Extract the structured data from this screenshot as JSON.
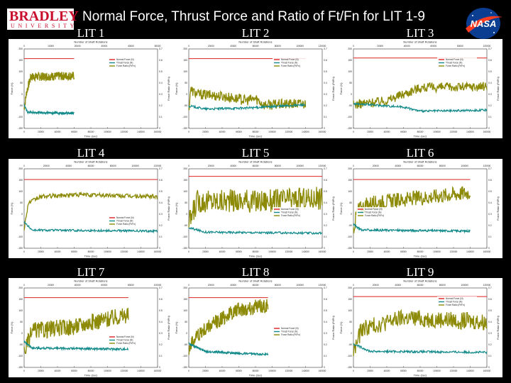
{
  "header": {
    "logo": {
      "main": "BRADLEY",
      "sub": "UNIVERSITY"
    },
    "title": "Normal Force, Thrust Force and Ratio of Ft/Fn for LIT 1-9",
    "nasa": "NASA"
  },
  "colors": {
    "background": "#000000",
    "normal": "#dd2222",
    "thrust": "#138a8a",
    "ratio": "#8c8a06"
  },
  "chart_data": [
    {
      "label": "LIT 1",
      "type": "line",
      "title": "Number of Shaft Rotations",
      "xlabel": "Time (sec)",
      "ylabel": "Force (N)",
      "y2label": "Force Ratio (Ft/Fn)",
      "top_ticks": [
        "0",
        "10000",
        "20000",
        "30000",
        "40000",
        "50000"
      ],
      "x_ticks": [
        "0",
        "20000",
        "40000",
        "60000",
        "80000",
        "100000",
        "120000",
        "140000",
        "160000"
      ],
      "y_ticks": [
        "200",
        "150",
        "100",
        "50",
        "0",
        "-50",
        "-100",
        "-150"
      ],
      "y2_ticks": [
        "0.7",
        "0.6",
        "0.5",
        "0.4",
        "0.3",
        "0.2",
        "0.1",
        "0"
      ],
      "legend": [
        "Normal Force (N)",
        "Thrust Force (N)",
        "Force Ratio (Ft/Fn)"
      ],
      "legend_pos": "top-right",
      "xlim": [
        0,
        160000
      ],
      "ylim": [
        -150,
        220
      ],
      "series_end": 60000,
      "normal": 175,
      "thrust": [
        [
          0,
          -40
        ],
        [
          4000,
          -75
        ],
        [
          60000,
          -80
        ]
      ],
      "ratio": [
        [
          0,
          -60
        ],
        [
          3000,
          20
        ],
        [
          8000,
          90
        ],
        [
          60000,
          95
        ]
      ],
      "ratio_noise": 20
    },
    {
      "label": "LIT 2",
      "type": "line",
      "title": "Number of Shaft Rotations",
      "xlabel": "Time (sec)",
      "ylabel": "Force (N)",
      "y2label": "Force Ratio (Ft/Fn)",
      "top_ticks": [
        "0",
        "20000",
        "40000",
        "60000",
        "80000",
        "100000",
        "120000"
      ],
      "x_ticks": [
        "0",
        "20000",
        "40000",
        "60000",
        "80000",
        "100000",
        "120000",
        "140000",
        "160000"
      ],
      "y_ticks": [
        "200",
        "150",
        "100",
        "50",
        "0",
        "-50",
        "-100",
        "-150"
      ],
      "y2_ticks": [
        "0.7",
        "0.6",
        "0.5",
        "0.4",
        "0.3",
        "0.2",
        "0.1",
        "0"
      ],
      "legend": [
        "Normal Force (N)",
        "Thrust Force (N)",
        "Force Ratio (Ft/Fn)"
      ],
      "legend_pos": "top-right",
      "xlim": [
        0,
        160000
      ],
      "ylim": [
        -150,
        220
      ],
      "series_end": 140000,
      "normal": 175,
      "thrust": [
        [
          0,
          -45
        ],
        [
          20000,
          -60
        ],
        [
          70000,
          -55
        ],
        [
          140000,
          -40
        ]
      ],
      "ratio": [
        [
          0,
          -70
        ],
        [
          2000,
          30
        ],
        [
          10000,
          10
        ],
        [
          40000,
          0
        ],
        [
          70000,
          -20
        ],
        [
          80000,
          -10
        ],
        [
          90000,
          -40
        ],
        [
          140000,
          -35
        ]
      ],
      "ratio_noise": 24
    },
    {
      "label": "LIT 3",
      "type": "line",
      "title": "Number of Shaft Rotations",
      "xlabel": "Time (sec)",
      "ylabel": "Force (N)",
      "y2label": "Force Ratio (Ft/Fn)",
      "top_ticks": [
        "0",
        "20000",
        "40000",
        "60000",
        "80000",
        "100000"
      ],
      "x_ticks": [
        "0",
        "20000",
        "40000",
        "60000",
        "80000",
        "100000",
        "120000",
        "140000",
        "160000"
      ],
      "y_ticks": [
        "200",
        "150",
        "100",
        "50",
        "0",
        "-50",
        "-100",
        "-150"
      ],
      "y2_ticks": [
        "0.7",
        "0.6",
        "0.5",
        "0.4",
        "0.3",
        "0.2",
        "0.1",
        "0"
      ],
      "legend": [
        "Normal Force (N)",
        "Thrust Force (N)",
        "Force Ratio (Ft/Fn)"
      ],
      "legend_pos": "top-right",
      "xlim": [
        0,
        160000
      ],
      "ylim": [
        -150,
        220
      ],
      "series_end": 160000,
      "normal": 178,
      "thrust": [
        [
          0,
          -35
        ],
        [
          60000,
          -50
        ],
        [
          80000,
          -70
        ],
        [
          160000,
          -65
        ]
      ],
      "ratio": [
        [
          0,
          -40
        ],
        [
          40000,
          -20
        ],
        [
          60000,
          10
        ],
        [
          80000,
          40
        ],
        [
          160000,
          45
        ]
      ],
      "ratio_noise": 22
    },
    {
      "label": "LIT 4",
      "type": "line",
      "title": "Number of Shaft Rotations",
      "xlabel": "Time (sec)",
      "ylabel": "Force (N)",
      "y2label": "Force Ratio (Ft/Fn)",
      "top_ticks": [
        "0",
        "20000",
        "40000",
        "60000",
        "80000",
        "100000",
        "120000"
      ],
      "x_ticks": [
        "0",
        "20000",
        "40000",
        "60000",
        "80000",
        "100000",
        "120000",
        "140000",
        "160000"
      ],
      "y_ticks": [
        "200",
        "150",
        "100",
        "50",
        "0",
        "-50",
        "-100",
        "-150"
      ],
      "y2_ticks": [
        "0.7",
        "0.6",
        "0.5",
        "0.4",
        "0.3",
        "0.2",
        "0.1",
        "0"
      ],
      "legend": [
        "Normal Force (N)",
        "Thrust Force (N)",
        "Force Ratio (Ft/Fn)"
      ],
      "legend_pos": "bottom-right",
      "xlim": [
        0,
        160000
      ],
      "ylim": [
        -150,
        220
      ],
      "series_end": 160000,
      "normal": 170,
      "thrust": [
        [
          0,
          -30
        ],
        [
          10000,
          -65
        ],
        [
          160000,
          -70
        ]
      ],
      "ratio": [
        [
          0,
          -60
        ],
        [
          5000,
          60
        ],
        [
          20000,
          90
        ],
        [
          60000,
          100
        ],
        [
          160000,
          90
        ]
      ],
      "ratio_noise": 10
    },
    {
      "label": "LIT 5",
      "type": "line",
      "title": "Number of Shaft Rotations",
      "xlabel": "Time (sec)",
      "ylabel": "Force (N)",
      "y2label": "Force Ratio (Ft/Fn)",
      "top_ticks": [
        "0",
        "20000",
        "40000",
        "60000",
        "80000",
        "100000",
        "120000"
      ],
      "x_ticks": [
        "0",
        "20000",
        "40000",
        "60000",
        "80000",
        "100000",
        "120000",
        "140000",
        "160000"
      ],
      "y_ticks": [
        "200",
        "150",
        "100",
        "50",
        "0",
        "-50",
        "-100",
        "-150"
      ],
      "y2_ticks": [
        "0.7",
        "0.6",
        "0.5",
        "0.4",
        "0.3",
        "0.2",
        "0.1",
        "0"
      ],
      "legend": [
        "Normal Force (N)",
        "Thrust Force (N)",
        "Force Ratio (Ft/Fn)"
      ],
      "legend_pos": "middle-right",
      "xlim": [
        0,
        160000
      ],
      "ylim": [
        -150,
        220
      ],
      "series_end": 160000,
      "normal": 185,
      "thrust": [
        [
          0,
          -55
        ],
        [
          20000,
          -75
        ],
        [
          160000,
          -80
        ]
      ],
      "ratio": [
        [
          0,
          -40
        ],
        [
          10000,
          70
        ],
        [
          80000,
          70
        ],
        [
          160000,
          85
        ]
      ],
      "ratio_noise": 55
    },
    {
      "label": "LIT 6",
      "type": "line",
      "title": "Number of Shaft Rotations",
      "xlabel": "Time (sec)",
      "ylabel": "Force (N)",
      "y2label": "Force Ratio (Ft/Fn)",
      "top_ticks": [
        "0",
        "20000",
        "40000",
        "60000",
        "80000",
        "100000",
        "120000"
      ],
      "x_ticks": [
        "0",
        "20000",
        "40000",
        "60000",
        "80000",
        "100000",
        "120000",
        "140000",
        "160000"
      ],
      "y_ticks": [
        "200",
        "150",
        "100",
        "50",
        "0",
        "-50",
        "-100",
        "-150"
      ],
      "y2_ticks": [
        "0.7",
        "0.6",
        "0.5",
        "0.4",
        "0.3",
        "0.2",
        "0.1",
        "0"
      ],
      "legend": [
        "Normal Force (N)",
        "Thrust Force (N)",
        "Force Ratio (Ft/Fn)"
      ],
      "legend_pos": "middle-left",
      "xlim": [
        0,
        160000
      ],
      "ylim": [
        -150,
        220
      ],
      "series_end": 140000,
      "normal": 170,
      "thrust": [
        [
          0,
          -40
        ],
        [
          10000,
          -65
        ],
        [
          140000,
          -70
        ]
      ],
      "ratio": [
        [
          0,
          -60
        ],
        [
          5000,
          30
        ],
        [
          20000,
          60
        ],
        [
          70000,
          80
        ],
        [
          140000,
          110
        ]
      ],
      "ratio_noise": 35
    },
    {
      "label": "LIT 7",
      "type": "line",
      "title": "Number of Shaft Rotations",
      "xlabel": "Time (sec)",
      "ylabel": "Force (N)",
      "y2label": "Force Ratio (Ft/Fn)",
      "top_ticks": [
        "0",
        "20000",
        "40000",
        "60000",
        "80000",
        "100000"
      ],
      "x_ticks": [
        "0",
        "20000",
        "40000",
        "60000",
        "80000",
        "100000",
        "120000",
        "140000",
        "160000"
      ],
      "y_ticks": [
        "200",
        "150",
        "100",
        "50",
        "0",
        "-50",
        "-100",
        "-150"
      ],
      "y2_ticks": [
        "0.7",
        "0.6",
        "0.5",
        "0.4",
        "0.3",
        "0.2",
        "0.1",
        "0"
      ],
      "legend": [
        "Normal Force (N)",
        "Thrust Force (N)",
        "Force Ratio (Ft/Fn)"
      ],
      "legend_pos": "bottom-right",
      "xlim": [
        0,
        160000
      ],
      "ylim": [
        -150,
        220
      ],
      "series_end": 125000,
      "normal": 175,
      "thrust": [
        [
          0,
          -30
        ],
        [
          10000,
          -60
        ],
        [
          125000,
          -65
        ]
      ],
      "ratio": [
        [
          0,
          -80
        ],
        [
          10000,
          20
        ],
        [
          60000,
          40
        ],
        [
          80000,
          60
        ],
        [
          125000,
          95
        ]
      ],
      "ratio_noise": 40
    },
    {
      "label": "LIT 8",
      "type": "line",
      "title": "Number of Shaft Rotations",
      "xlabel": "Time (sec)",
      "ylabel": "Force (N)",
      "y2label": "Force Ratio (Ft/Fn)",
      "top_ticks": [
        "0",
        "20000",
        "40000",
        "60000",
        "80000",
        "100000",
        "120000"
      ],
      "x_ticks": [
        "0",
        "20000",
        "40000",
        "60000",
        "80000",
        "100000",
        "120000",
        "140000",
        "160000"
      ],
      "y_ticks": [
        "200",
        "150",
        "100",
        "50",
        "0",
        "-50",
        "-100",
        "-150"
      ],
      "y2_ticks": [
        "0.7",
        "0.6",
        "0.5",
        "0.4",
        "0.3",
        "0.2",
        "0.1",
        "0"
      ],
      "legend": [
        "Normal Force (N)",
        "Thrust Force (N)",
        "Force Ratio (Ft/Fn)"
      ],
      "legend_pos": "middle-right",
      "xlim": [
        0,
        160000
      ],
      "ylim": [
        -150,
        220
      ],
      "series_end": 95000,
      "normal": 175,
      "thrust": [
        [
          0,
          -40
        ],
        [
          20000,
          -75
        ],
        [
          60000,
          -85
        ],
        [
          95000,
          -90
        ]
      ],
      "ratio": [
        [
          0,
          -60
        ],
        [
          10000,
          0
        ],
        [
          40000,
          80
        ],
        [
          60000,
          120
        ],
        [
          95000,
          140
        ]
      ],
      "ratio_noise": 35
    },
    {
      "label": "LIT 9",
      "type": "line",
      "title": "Number of Shaft Rotations",
      "xlabel": "Time (sec)",
      "ylabel": "Force (N)",
      "y2label": "Force Ratio (Ft/Fn)",
      "top_ticks": [
        "0",
        "20000",
        "40000",
        "60000",
        "80000",
        "100000",
        "120000"
      ],
      "x_ticks": [
        "0",
        "20000",
        "40000",
        "60000",
        "80000",
        "100000",
        "120000",
        "140000",
        "160000"
      ],
      "y_ticks": [
        "200",
        "150",
        "100",
        "50",
        "0",
        "-50",
        "-100",
        "-150"
      ],
      "y2_ticks": [
        "0.7",
        "0.6",
        "0.5",
        "0.4",
        "0.3",
        "0.2",
        "0.1",
        "0"
      ],
      "legend": [
        "Normal Force (N)",
        "Thrust Force (N)",
        "Force Ratio (Ft/Fn)"
      ],
      "legend_pos": "top-right",
      "xlim": [
        0,
        160000
      ],
      "ylim": [
        -150,
        220
      ],
      "series_end": 160000,
      "normal": 180,
      "thrust": [
        [
          0,
          -40
        ],
        [
          20000,
          -75
        ],
        [
          160000,
          -80
        ]
      ],
      "ratio": [
        [
          0,
          -80
        ],
        [
          10000,
          30
        ],
        [
          60000,
          80
        ],
        [
          120000,
          70
        ],
        [
          160000,
          60
        ]
      ],
      "ratio_noise": 40
    }
  ]
}
